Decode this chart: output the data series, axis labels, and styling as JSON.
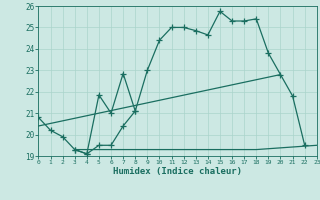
{
  "xlabel": "Humidex (Indice chaleur)",
  "bg_color": "#cce8e3",
  "grid_color": "#aad4cc",
  "line_color": "#1a6e60",
  "xlim": [
    0,
    23
  ],
  "ylim": [
    19,
    26
  ],
  "yticks": [
    19,
    20,
    21,
    22,
    23,
    24,
    25,
    26
  ],
  "xticks": [
    0,
    1,
    2,
    3,
    4,
    5,
    6,
    7,
    8,
    9,
    10,
    11,
    12,
    13,
    14,
    15,
    16,
    17,
    18,
    19,
    20,
    21,
    22,
    23
  ],
  "line1_x": [
    0,
    1,
    2,
    3,
    4,
    5,
    6,
    7,
    8,
    9,
    10,
    11,
    12,
    13,
    14,
    15,
    16,
    17,
    18,
    19,
    20,
    21,
    22
  ],
  "line1_y": [
    20.8,
    20.2,
    19.9,
    19.3,
    19.1,
    21.85,
    21.0,
    22.85,
    21.1,
    23.0,
    24.4,
    25.0,
    25.0,
    24.85,
    24.65,
    25.75,
    25.3,
    25.3,
    25.4,
    23.8,
    22.8,
    21.8,
    19.5
  ],
  "line2_x": [
    3,
    4,
    5,
    6,
    7,
    8
  ],
  "line2_y": [
    19.3,
    19.1,
    19.5,
    19.5,
    20.4,
    21.1
  ],
  "line3_x": [
    3,
    18,
    23
  ],
  "line3_y": [
    19.3,
    19.3,
    19.5
  ],
  "line4_x": [
    0,
    20
  ],
  "line4_y": [
    20.4,
    22.8
  ]
}
